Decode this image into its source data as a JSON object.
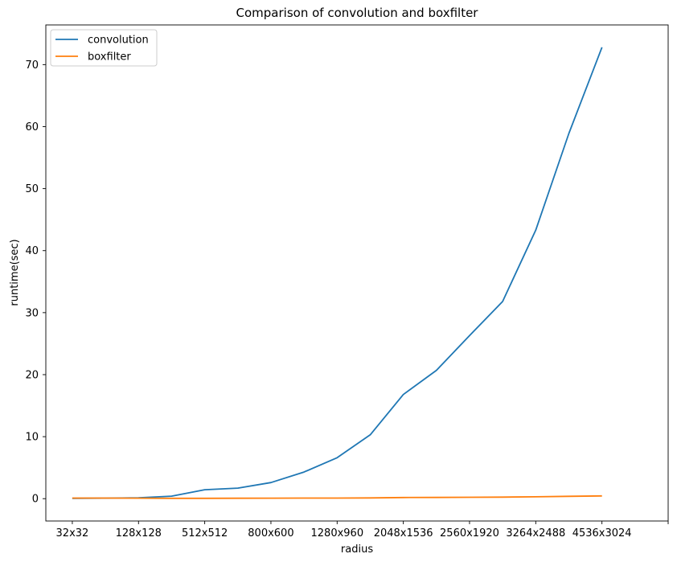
{
  "chart_data": {
    "type": "line",
    "title": "Comparison of convolution and boxfilter",
    "xlabel": "radius",
    "ylabel": "runtime(sec)",
    "x_tick_labels": [
      "32x32",
      "128x128",
      "512x512",
      "800x600",
      "1280x960",
      "2048x1536",
      "2560x1920",
      "3264x2488",
      "4536x3024",
      ""
    ],
    "x_tick_positions": [
      0,
      2,
      4,
      6,
      8,
      10,
      12,
      14,
      16,
      18
    ],
    "x": [
      0,
      1,
      2,
      3,
      4,
      5,
      6,
      7,
      8,
      9,
      10,
      11,
      12,
      13,
      14,
      15,
      16
    ],
    "xlim": [
      -0.8,
      18
    ],
    "ylim": [
      -3.6,
      76.4
    ],
    "y_ticks": [
      0,
      10,
      20,
      30,
      40,
      50,
      60,
      70
    ],
    "grid": false,
    "legend_position": "top-left",
    "series": [
      {
        "name": "convolution",
        "color": "#1f77b4",
        "values": [
          0.05,
          0.08,
          0.15,
          0.4,
          1.45,
          1.7,
          2.6,
          4.3,
          6.6,
          10.3,
          16.8,
          20.7,
          26.3,
          31.8,
          43.3,
          58.9,
          72.8
        ]
      },
      {
        "name": "boxfilter",
        "color": "#ff7f0e",
        "values": [
          0.1,
          0.09,
          0.08,
          0.06,
          0.06,
          0.07,
          0.08,
          0.09,
          0.1,
          0.12,
          0.18,
          0.2,
          0.22,
          0.25,
          0.3,
          0.38,
          0.45
        ]
      }
    ]
  }
}
